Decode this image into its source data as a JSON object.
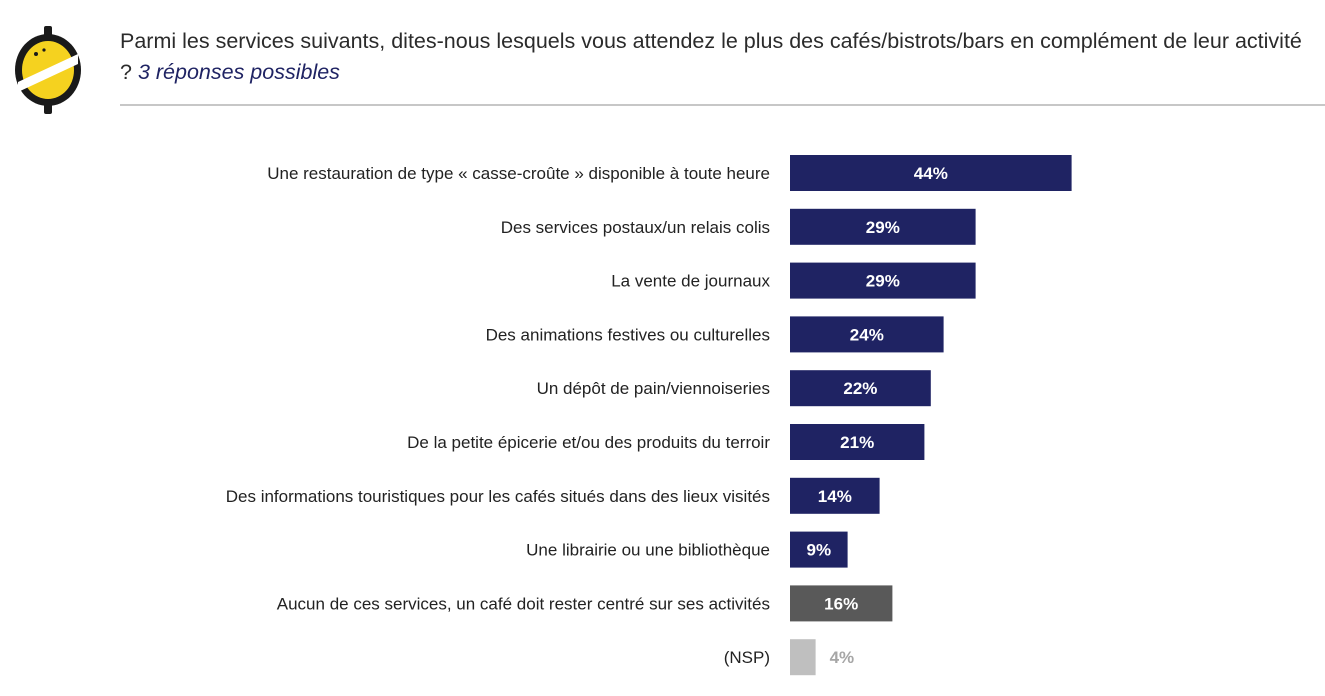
{
  "header": {
    "title_main": "Parmi les services suivants, dites-nous lesquels vous attendez le plus des cafés/bistrots/bars en complément de leur activité ?",
    "title_note": "3 réponses possibles"
  },
  "colors": {
    "primary_bar": "#1f2363",
    "none_bar": "#595959",
    "nsp_bar": "#bfbfbf",
    "label_light": "#ffffff",
    "label_nsp": "#a6a6a6",
    "logo_yellow": "#f5d21f",
    "logo_dark": "#1a1a1a"
  },
  "logo": {
    "icon": "lemon-logo-icon"
  },
  "chart_data": {
    "type": "bar",
    "orientation": "horizontal",
    "unit": "%",
    "xlim": [
      0,
      100
    ],
    "grid": false,
    "categories": [
      "Une restauration de type « casse-croûte » disponible à toute heure",
      "Des services postaux/un relais colis",
      "La vente de journaux",
      "Des animations festives ou culturelles",
      "Un dépôt de pain/viennoiseries",
      "De la petite épicerie et/ou des produits du terroir",
      "Des informations touristiques pour les cafés situés dans des lieux visités",
      "Une librairie ou une bibliothèque",
      "Aucun de ces services, un café doit rester centré sur ses activités",
      "(NSP)"
    ],
    "values": [
      44,
      29,
      29,
      24,
      22,
      21,
      14,
      9,
      16,
      4
    ],
    "value_labels": [
      "44%",
      "29%",
      "29%",
      "24%",
      "22%",
      "21%",
      "14%",
      "9%",
      "16%",
      "4%"
    ],
    "bar_kind": [
      "service",
      "service",
      "service",
      "service",
      "service",
      "service",
      "service",
      "service",
      "none",
      "nsp"
    ]
  }
}
